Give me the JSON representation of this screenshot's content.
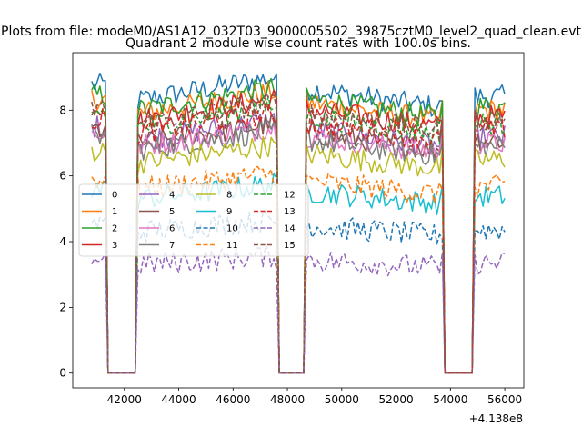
{
  "chart_data": {
    "type": "line",
    "suptitle": "Plots from file: modeM0/AS1A12_032T03_9000005502_39875cztM0_level2_quad_clean.evt",
    "title": "Quadrant 2 module wise count rates with 100.0s bins.",
    "xlabel": "",
    "ylabel": "",
    "x_offset_label": "+4.138e8",
    "xlim": [
      40100,
      56700
    ],
    "ylim": [
      -0.45,
      9.75
    ],
    "x_ticks": [
      42000,
      44000,
      46000,
      48000,
      50000,
      52000,
      54000,
      56000
    ],
    "x_tick_labels": [
      "42000",
      "44000",
      "46000",
      "48000",
      "50000",
      "52000",
      "54000",
      "56000"
    ],
    "y_ticks": [
      0,
      2,
      4,
      6,
      8
    ],
    "y_tick_labels": [
      "0",
      "2",
      "4",
      "6",
      "8"
    ],
    "x_start": 40800,
    "bin_size": 100,
    "gaps": [
      [
        41300,
        42500
      ],
      [
        47600,
        48700
      ],
      [
        53700,
        54900
      ]
    ],
    "x_end": 56000,
    "legend": {
      "location": "center-left",
      "ncol": 4
    },
    "series": [
      {
        "name": "0",
        "color": "#1f77b4",
        "dash": false,
        "level": 8.3
      },
      {
        "name": "1",
        "color": "#ff7f0e",
        "dash": false,
        "level": 7.9
      },
      {
        "name": "2",
        "color": "#2ca02c",
        "dash": false,
        "level": 8.0
      },
      {
        "name": "3",
        "color": "#d62728",
        "dash": false,
        "level": 7.7
      },
      {
        "name": "4",
        "color": "#9467bd",
        "dash": false,
        "level": 7.1
      },
      {
        "name": "5",
        "color": "#8c564b",
        "dash": false,
        "level": 7.0
      },
      {
        "name": "6",
        "color": "#e377c2",
        "dash": false,
        "level": 6.9
      },
      {
        "name": "7",
        "color": "#7f7f7f",
        "dash": false,
        "level": 6.8
      },
      {
        "name": "8",
        "color": "#bcbd22",
        "dash": false,
        "level": 6.4
      },
      {
        "name": "9",
        "color": "#17becf",
        "dash": false,
        "level": 5.3
      },
      {
        "name": "10",
        "color": "#1f77b4",
        "dash": true,
        "level": 4.3
      },
      {
        "name": "11",
        "color": "#ff7f0e",
        "dash": true,
        "level": 5.6
      },
      {
        "name": "12",
        "color": "#2ca02c",
        "dash": true,
        "level": 7.5
      },
      {
        "name": "13",
        "color": "#d62728",
        "dash": true,
        "level": 7.3
      },
      {
        "name": "14",
        "color": "#9467bd",
        "dash": true,
        "level": 3.3
      },
      {
        "name": "15",
        "color": "#8c564b",
        "dash": true,
        "level": 7.6
      }
    ]
  }
}
